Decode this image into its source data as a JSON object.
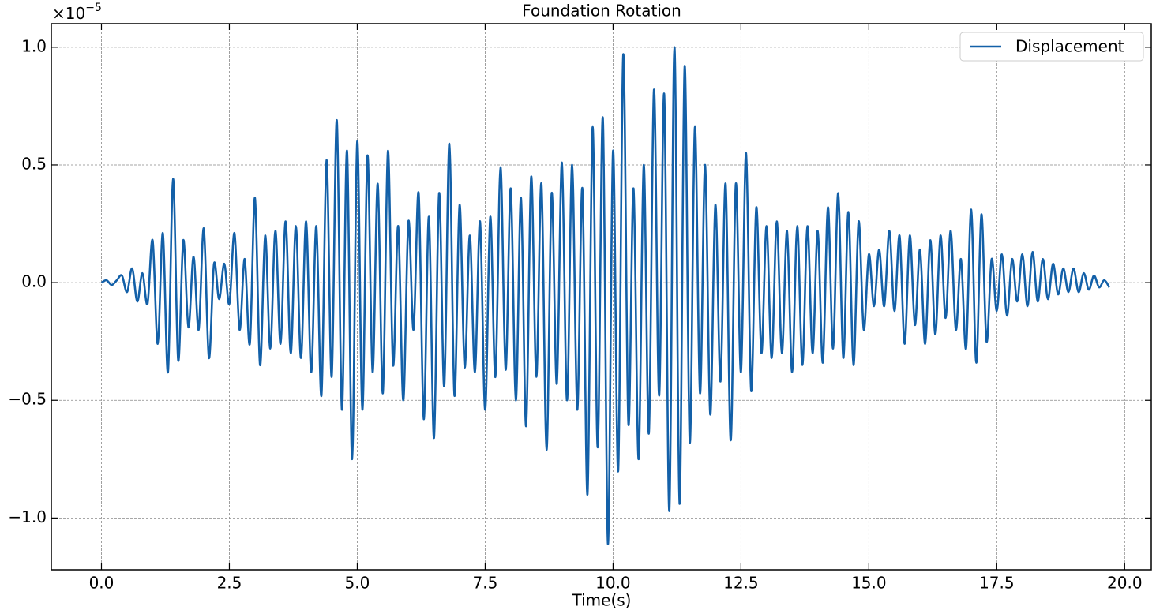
{
  "chart_data": {
    "type": "line",
    "title": "Foundation Rotation",
    "x_label": "Time(s)",
    "y_offset_label": {
      "base": "×10",
      "exponent": "−5"
    },
    "legend": "upper right",
    "grid": true,
    "xlim": [
      -0.98,
      20.52
    ],
    "ylim": [
      -1.22,
      1.1
    ],
    "xticks": [
      {
        "value": 0,
        "label": "0.0"
      },
      2.5,
      {
        "value": 5,
        "label": "5.0"
      },
      7.5,
      {
        "value": 10,
        "label": "10.0"
      },
      12.5,
      {
        "value": 15,
        "label": "15.0"
      },
      17.5,
      {
        "value": 20,
        "label": "20.0"
      }
    ],
    "yticks": [
      {
        "value": -1,
        "label": "−1.0"
      },
      {
        "value": -0.5,
        "label": "−0.5"
      },
      {
        "value": 0,
        "label": "0.0"
      },
      0.5,
      {
        "value": 1,
        "label": "1.0"
      }
    ],
    "x": [
      0.0,
      0.1,
      0.2,
      0.3,
      0.4,
      0.5,
      0.6,
      0.7,
      0.8,
      0.9,
      1.0,
      1.1,
      1.2,
      1.3,
      1.4,
      1.5,
      1.6,
      1.7,
      1.8,
      1.9,
      2.0,
      2.1,
      2.2,
      2.3,
      2.4,
      2.5,
      2.6,
      2.7,
      2.8,
      2.9,
      3.0,
      3.1,
      3.2,
      3.3,
      3.4,
      3.5,
      3.6,
      3.7,
      3.8,
      3.9,
      4.0,
      4.1,
      4.2,
      4.3,
      4.4,
      4.5,
      4.6,
      4.7,
      4.8,
      4.9,
      5.0,
      5.1,
      5.2,
      5.3,
      5.4,
      5.5,
      5.6,
      5.7,
      5.8,
      5.9,
      6.0,
      6.1,
      6.2,
      6.3,
      6.4,
      6.5,
      6.6,
      6.7,
      6.8,
      6.9,
      7.0,
      7.1,
      7.2,
      7.3,
      7.4,
      7.5,
      7.6,
      7.7,
      7.8,
      7.9,
      8.0,
      8.1,
      8.2,
      8.3,
      8.4,
      8.5,
      8.6,
      8.7,
      8.8,
      8.9,
      9.0,
      9.1,
      9.2,
      9.3,
      9.4,
      9.5,
      9.6,
      9.7,
      9.8,
      9.9,
      10.0,
      10.1,
      10.2,
      10.3,
      10.4,
      10.5,
      10.6,
      10.7,
      10.8,
      10.9,
      11.0,
      11.1,
      11.2,
      11.3,
      11.4,
      11.5,
      11.6,
      11.7,
      11.8,
      11.9,
      12.0,
      12.1,
      12.2,
      12.3,
      12.4,
      12.5,
      12.6,
      12.7,
      12.8,
      12.9,
      13.0,
      13.1,
      13.2,
      13.3,
      13.4,
      13.5,
      13.6,
      13.7,
      13.8,
      13.9,
      14.0,
      14.1,
      14.2,
      14.3,
      14.4,
      14.5,
      14.6,
      14.7,
      14.8,
      14.9,
      15.0,
      15.1,
      15.2,
      15.3,
      15.4,
      15.5,
      15.6,
      15.7,
      15.8,
      15.9,
      16.0,
      16.1,
      16.2,
      16.3,
      16.4,
      16.5,
      16.6,
      16.7,
      16.8,
      16.9,
      17.0,
      17.1,
      17.2,
      17.3,
      17.4,
      17.5,
      17.6,
      17.7,
      17.8,
      17.9,
      18.0,
      18.1,
      18.2,
      18.3,
      18.4,
      18.5,
      18.6,
      18.7,
      18.8,
      18.9,
      19.0,
      19.1,
      19.2,
      19.3,
      19.4,
      19.5,
      19.6,
      19.7
    ],
    "series": [
      {
        "name": "Displacement",
        "color": "#1360a8",
        "values": [
          0.0,
          0.01,
          -0.01,
          0.01,
          0.03,
          -0.04,
          0.06,
          -0.08,
          0.04,
          -0.09,
          0.18,
          -0.26,
          0.21,
          -0.38,
          0.44,
          -0.33,
          0.18,
          -0.19,
          0.11,
          -0.2,
          0.23,
          -0.32,
          0.08,
          -0.07,
          0.08,
          -0.09,
          0.21,
          -0.2,
          0.1,
          -0.26,
          0.36,
          -0.35,
          0.2,
          -0.28,
          0.22,
          -0.26,
          0.26,
          -0.3,
          0.24,
          -0.32,
          0.26,
          -0.38,
          0.24,
          -0.48,
          0.52,
          -0.4,
          0.69,
          -0.54,
          0.56,
          -0.75,
          0.6,
          -0.54,
          0.54,
          -0.38,
          0.42,
          -0.47,
          0.56,
          -0.35,
          0.24,
          -0.5,
          0.26,
          -0.2,
          0.38,
          -0.58,
          0.28,
          -0.66,
          0.38,
          -0.44,
          0.59,
          -0.48,
          0.33,
          -0.36,
          0.2,
          -0.38,
          0.26,
          -0.54,
          0.28,
          -0.4,
          0.49,
          -0.37,
          0.4,
          -0.5,
          0.36,
          -0.61,
          0.45,
          -0.4,
          0.42,
          -0.71,
          0.38,
          -0.43,
          0.51,
          -0.5,
          0.5,
          -0.54,
          0.4,
          -0.9,
          0.66,
          -0.7,
          0.7,
          -1.11,
          0.56,
          -0.8,
          0.97,
          -0.6,
          0.4,
          -0.75,
          0.5,
          -0.64,
          0.82,
          -0.48,
          0.8,
          -0.97,
          1.0,
          -0.94,
          0.92,
          -0.68,
          0.66,
          -0.47,
          0.5,
          -0.56,
          0.33,
          -0.42,
          0.42,
          -0.67,
          0.42,
          -0.38,
          0.55,
          -0.46,
          0.32,
          -0.3,
          0.24,
          -0.32,
          0.26,
          -0.3,
          0.22,
          -0.38,
          0.24,
          -0.35,
          0.24,
          -0.3,
          0.22,
          -0.34,
          0.32,
          -0.28,
          0.38,
          -0.32,
          0.3,
          -0.35,
          0.26,
          -0.2,
          0.12,
          -0.1,
          0.14,
          -0.1,
          0.22,
          -0.12,
          0.2,
          -0.26,
          0.2,
          -0.18,
          0.14,
          -0.26,
          0.18,
          -0.22,
          0.2,
          -0.15,
          0.22,
          -0.2,
          0.1,
          -0.28,
          0.31,
          -0.34,
          0.29,
          -0.25,
          0.1,
          -0.12,
          0.12,
          -0.14,
          0.1,
          -0.08,
          0.12,
          -0.1,
          0.13,
          -0.08,
          0.1,
          -0.07,
          0.08,
          -0.05,
          0.06,
          -0.04,
          0.06,
          -0.04,
          0.04,
          -0.03,
          0.03,
          -0.02,
          0.01,
          -0.02
        ]
      }
    ]
  }
}
